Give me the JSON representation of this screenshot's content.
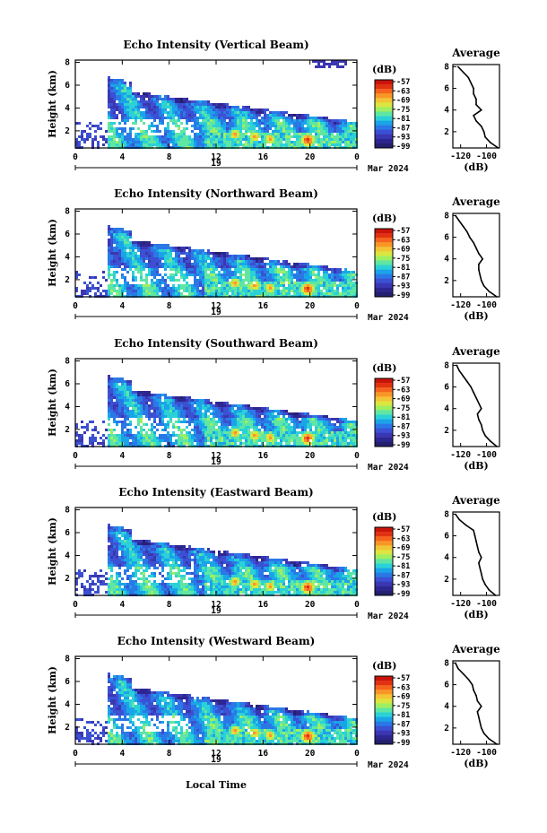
{
  "colors": {
    "axis": "#000000",
    "background": "#ffffff"
  },
  "colorbar": {
    "unit": "(dB)",
    "ticks": [
      "-57",
      "-63",
      "-69",
      "-75",
      "-81",
      "-87",
      "-93",
      "-99"
    ],
    "colors": [
      "#c8140a",
      "#e03212",
      "#f5641e",
      "#f89628",
      "#f3c436",
      "#dce640",
      "#9fef62",
      "#5fe6a3",
      "#2bd1d6",
      "#1aa4e8",
      "#2a78e6",
      "#3b50d2",
      "#3b36b2",
      "#2e2690",
      "#24206e"
    ]
  },
  "chart_data": [
    {
      "type": "heatmap",
      "title": "Echo Intensity (Vertical Beam)",
      "ylabel": "Height (km)",
      "x_ticks": [
        "0",
        "4",
        "8",
        "12",
        "16",
        "20",
        "0"
      ],
      "y_ticks": [
        "2",
        "4",
        "6",
        "8"
      ],
      "date_center": "19",
      "date_right": "Mar 2024",
      "xlim_hours": [
        0,
        24
      ],
      "ylim_km": [
        0.5,
        8.2
      ],
      "profile": {
        "title": "Average",
        "xlabel": "(dB)",
        "x_ticks": [
          "-120",
          "-100"
        ],
        "y_ticks": [
          "2",
          "4",
          "6",
          "8"
        ],
        "xlim": [
          -126,
          -90
        ],
        "height_km": [
          0.5,
          1,
          1.5,
          2,
          2.5,
          3,
          3.5,
          4,
          4.5,
          5,
          5.5,
          6,
          6.5,
          7,
          7.5,
          8
        ],
        "db": [
          -91,
          -97,
          -101,
          -102,
          -104,
          -108,
          -110,
          -104,
          -108,
          -108,
          -110,
          -110,
          -112,
          -114,
          -118,
          -122
        ]
      }
    },
    {
      "type": "heatmap",
      "title": "Echo Intensity (Northward Beam)",
      "ylabel": "Height (km)",
      "x_ticks": [
        "0",
        "4",
        "8",
        "12",
        "16",
        "20",
        "0"
      ],
      "y_ticks": [
        "2",
        "4",
        "6",
        "8"
      ],
      "date_center": "19",
      "date_right": "Mar 2024",
      "xlim_hours": [
        0,
        24
      ],
      "ylim_km": [
        0.5,
        8.2
      ],
      "profile": {
        "title": "Average",
        "xlabel": "(dB)",
        "x_ticks": [
          "-120",
          "-100"
        ],
        "y_ticks": [
          "2",
          "4",
          "6",
          "8"
        ],
        "xlim": [
          -126,
          -90
        ],
        "height_km": [
          0.5,
          1,
          1.5,
          2,
          2.5,
          3,
          3.5,
          4,
          4.5,
          5,
          5.5,
          6,
          6.5,
          7,
          7.5,
          8
        ],
        "db": [
          -92,
          -98,
          -102,
          -104,
          -105,
          -106,
          -106,
          -103,
          -106,
          -108,
          -110,
          -113,
          -115,
          -118,
          -121,
          -124
        ]
      }
    },
    {
      "type": "heatmap",
      "title": "Echo Intensity (Southward Beam)",
      "ylabel": "Height (km)",
      "x_ticks": [
        "0",
        "4",
        "8",
        "12",
        "16",
        "20",
        "0"
      ],
      "y_ticks": [
        "2",
        "4",
        "6",
        "8"
      ],
      "date_center": "19",
      "date_right": "Mar 2024",
      "xlim_hours": [
        0,
        24
      ],
      "ylim_km": [
        0.5,
        8.2
      ],
      "profile": {
        "title": "Average",
        "xlabel": "(dB)",
        "x_ticks": [
          "-120",
          "-100"
        ],
        "y_ticks": [
          "2",
          "4",
          "6",
          "8"
        ],
        "xlim": [
          -126,
          -90
        ],
        "height_km": [
          0.5,
          1,
          1.5,
          2,
          2.5,
          3,
          3.5,
          4,
          4.5,
          5,
          5.5,
          6,
          6.5,
          7,
          7.5,
          8
        ],
        "db": [
          -92,
          -97,
          -101,
          -103,
          -104,
          -106,
          -107,
          -104,
          -106,
          -108,
          -110,
          -112,
          -115,
          -118,
          -121,
          -123
        ]
      }
    },
    {
      "type": "heatmap",
      "title": "Echo Intensity (Eastward Beam)",
      "ylabel": "Height (km)",
      "x_ticks": [
        "0",
        "4",
        "8",
        "12",
        "16",
        "20",
        "0"
      ],
      "y_ticks": [
        "2",
        "4",
        "6",
        "8"
      ],
      "date_center": "19",
      "date_right": "Mar 2024",
      "xlim_hours": [
        0,
        24
      ],
      "ylim_km": [
        0.5,
        8.2
      ],
      "profile": {
        "title": "Average",
        "xlabel": "(dB)",
        "x_ticks": [
          "-120",
          "-100"
        ],
        "y_ticks": [
          "2",
          "4",
          "6",
          "8"
        ],
        "xlim": [
          -126,
          -90
        ],
        "height_km": [
          0.5,
          1,
          1.5,
          2,
          2.5,
          3,
          3.5,
          4,
          4.5,
          5,
          5.5,
          6,
          6.5,
          7,
          7.5,
          8
        ],
        "db": [
          -93,
          -98,
          -101,
          -103,
          -104,
          -105,
          -106,
          -104,
          -106,
          -107,
          -108,
          -109,
          -110,
          -116,
          -121,
          -124
        ]
      }
    },
    {
      "type": "heatmap",
      "title": "Echo Intensity (Westward Beam)",
      "ylabel": "Height (km)",
      "x_ticks": [
        "0",
        "4",
        "8",
        "12",
        "16",
        "20",
        "0"
      ],
      "y_ticks": [
        "2",
        "4",
        "6",
        "8"
      ],
      "date_center": "19",
      "date_right": "Mar 2024",
      "xlim_hours": [
        0,
        24
      ],
      "ylim_km": [
        0.5,
        8.2
      ],
      "profile": {
        "title": "Average",
        "xlabel": "(dB)",
        "x_ticks": [
          "-120",
          "-100"
        ],
        "y_ticks": [
          "2",
          "4",
          "6",
          "8"
        ],
        "xlim": [
          -126,
          -90
        ],
        "height_km": [
          0.5,
          1,
          1.5,
          2,
          2.5,
          3,
          3.5,
          4,
          4.5,
          5,
          5.5,
          6,
          6.5,
          7,
          7.5,
          8
        ],
        "db": [
          -92,
          -98,
          -102,
          -104,
          -105,
          -106,
          -107,
          -104,
          -107,
          -108,
          -110,
          -111,
          -114,
          -118,
          -122,
          -124
        ]
      }
    }
  ],
  "bottom_xlabel": "Local Time"
}
